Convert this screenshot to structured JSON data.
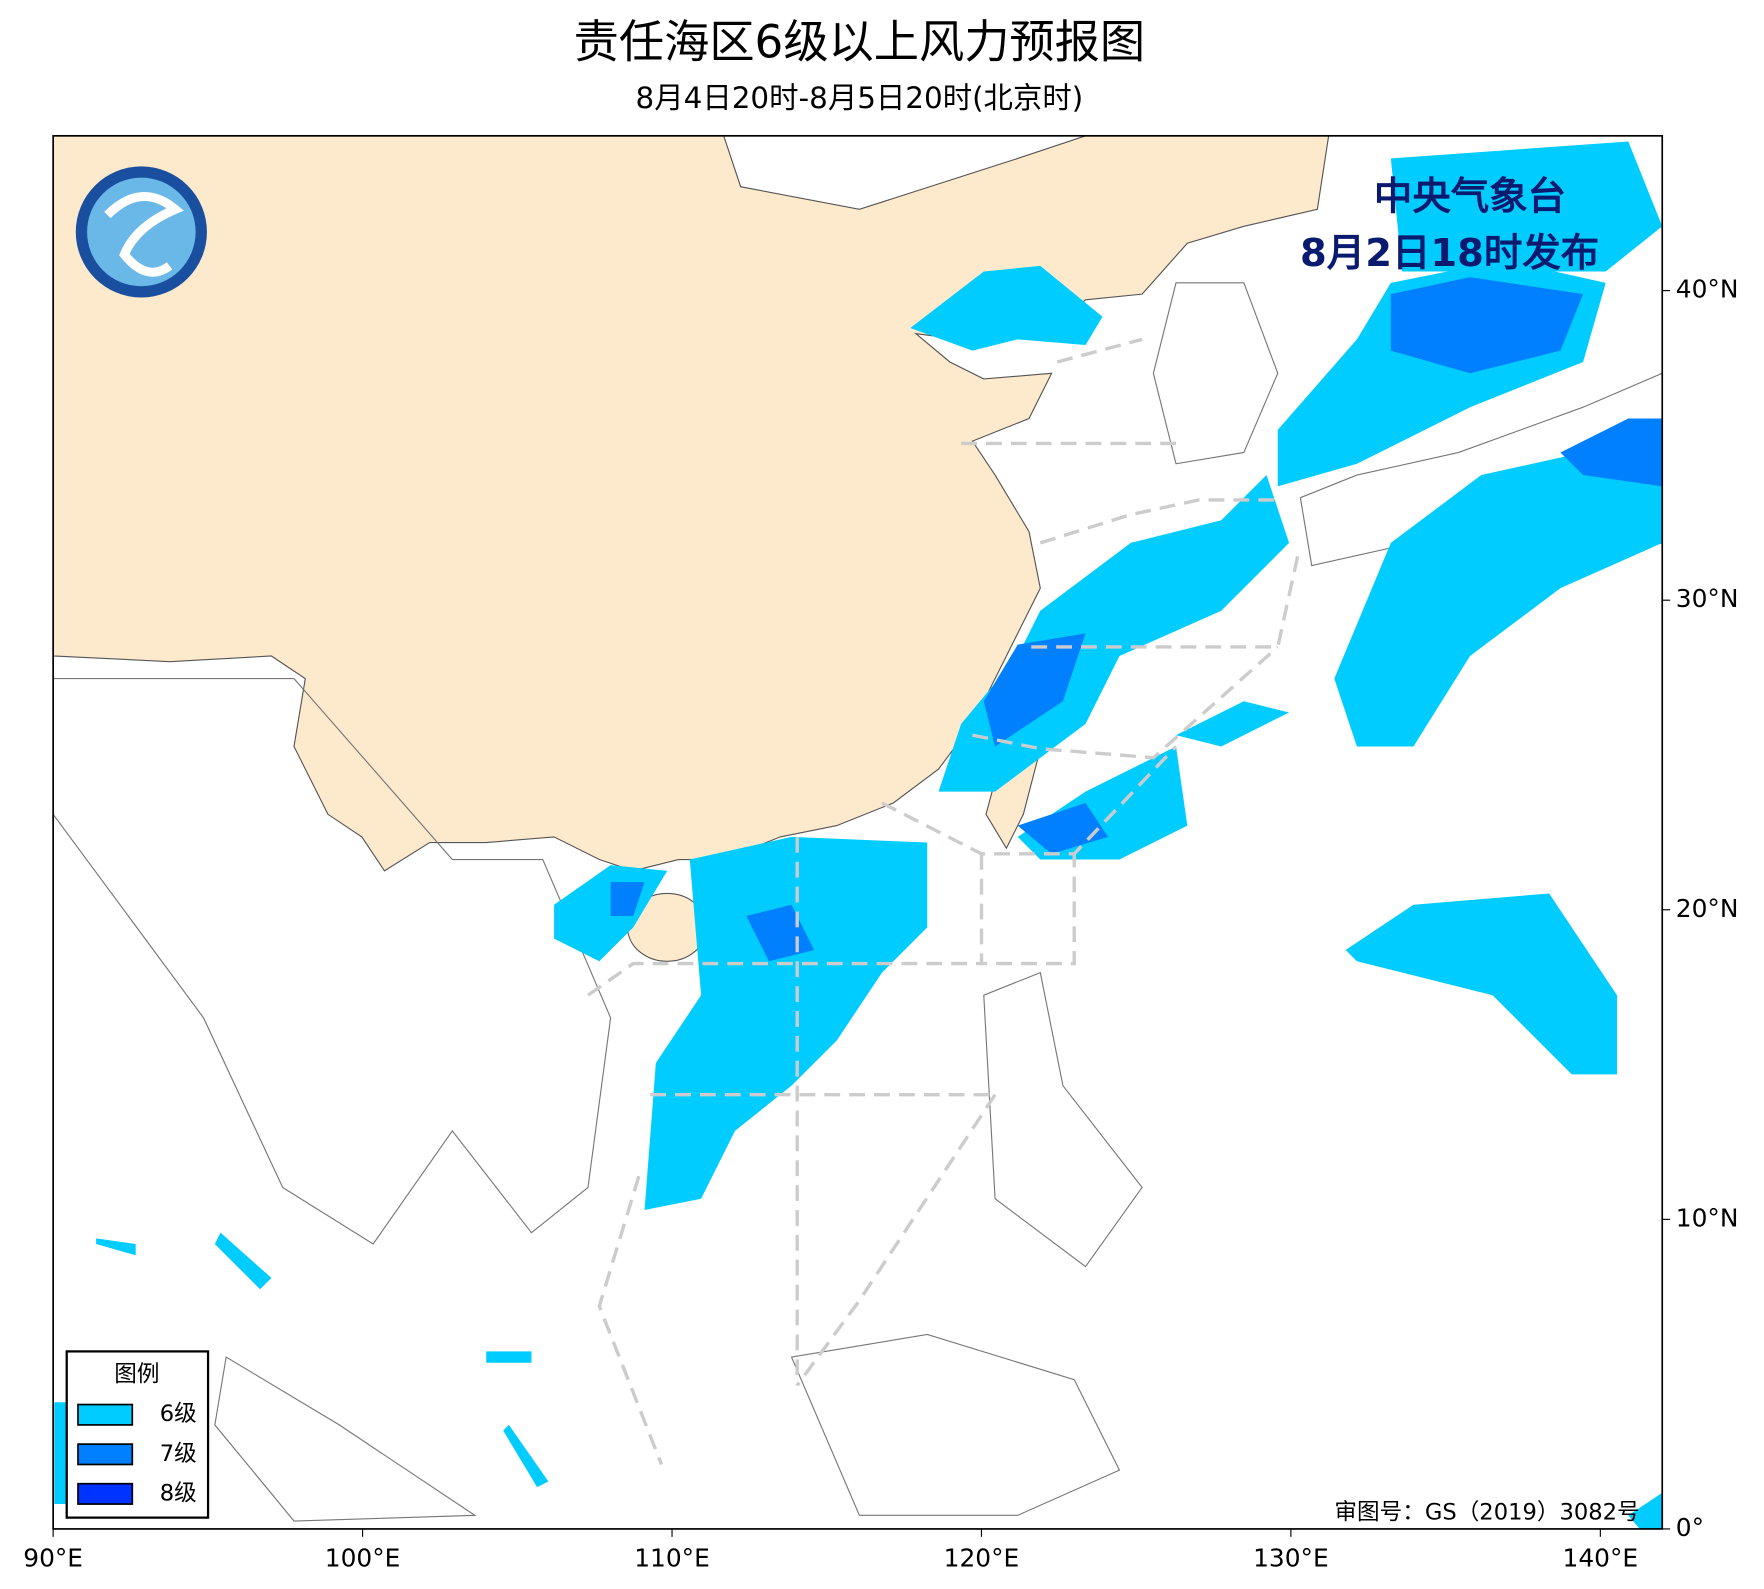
{
  "title": "责任海区6级以上风力预报图",
  "subtitle": "8月4日20时-8月5日20时(北京时)",
  "agency": "中央气象台",
  "issued": "8月2日18时发布",
  "credit": "审图号：GS（2019）3082号",
  "map": {
    "lonlim": [
      90,
      142
    ],
    "latlim": [
      0,
      45
    ],
    "lonticks": [
      {
        "value": 90,
        "label": "90°E"
      },
      {
        "value": 100,
        "label": "100°E"
      },
      {
        "value": 110,
        "label": "110°E"
      },
      {
        "value": 120,
        "label": "120°E"
      },
      {
        "value": 130,
        "label": "130°E"
      },
      {
        "value": 140,
        "label": "140°E"
      }
    ],
    "latticks": [
      {
        "value": 0,
        "label": "0°"
      },
      {
        "value": 10,
        "label": "10°N"
      },
      {
        "value": 20,
        "label": "20°N"
      },
      {
        "value": 30,
        "label": "30°N"
      },
      {
        "value": 40,
        "label": "40°N"
      }
    ]
  },
  "legend": {
    "title": "图例",
    "items": [
      {
        "label": "6级",
        "color": "#00ccff"
      },
      {
        "label": "7级",
        "color": "#0080ff"
      },
      {
        "label": "8级",
        "color": "#0033ff"
      }
    ]
  }
}
